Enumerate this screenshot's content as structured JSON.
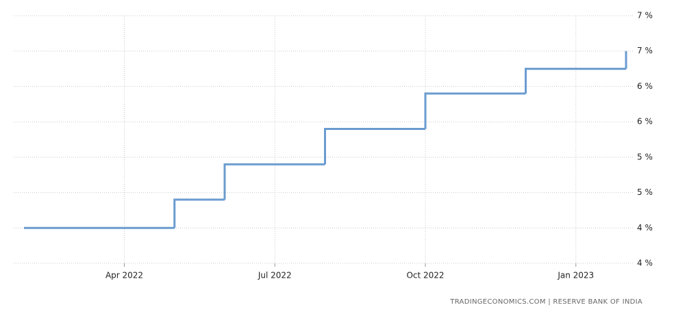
{
  "chart_data": {
    "type": "step",
    "source": "TRADINGECONOMICS.COM | RESERVE BANK OF INDIA",
    "series": [
      {
        "color": "#6a9bcf",
        "x": [
          "2022-02",
          "2022-05",
          "2022-06",
          "2022-08",
          "2022-10",
          "2022-12",
          "2023-02"
        ],
        "values": [
          4.0,
          4.4,
          4.9,
          5.4,
          5.9,
          6.25,
          6.5
        ]
      }
    ],
    "xlim": [
      "2022-02",
      "2023-02"
    ],
    "xticks": [
      {
        "value": "2022-04",
        "label": "Apr 2022"
      },
      {
        "value": "2022-07",
        "label": "Jul 2022"
      },
      {
        "value": "2022-10",
        "label": "Oct 2022"
      },
      {
        "value": "2023-01",
        "label": "Jan 2023"
      }
    ],
    "ylim": [
      3.5,
      7.0
    ],
    "yticks": [
      {
        "value": 3.5,
        "label": "4 %"
      },
      {
        "value": 4.0,
        "label": "4 %"
      },
      {
        "value": 4.5,
        "label": "5 %"
      },
      {
        "value": 5.0,
        "label": "5 %"
      },
      {
        "value": 5.5,
        "label": "6 %"
      },
      {
        "value": 6.0,
        "label": "6 %"
      },
      {
        "value": 6.5,
        "label": "7 %"
      },
      {
        "value": 7.0,
        "label": "7 %"
      }
    ],
    "grid": true
  }
}
